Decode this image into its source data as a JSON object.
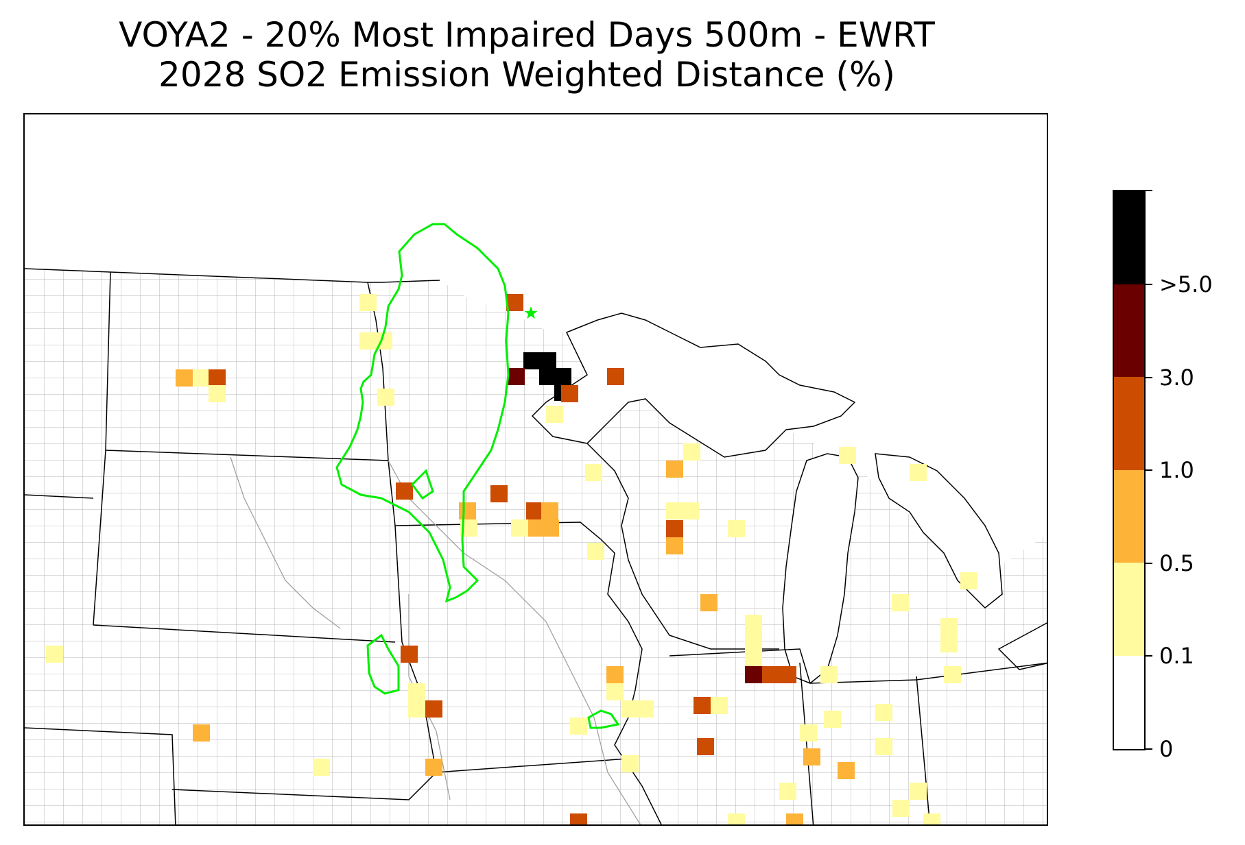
{
  "title": {
    "line1": "VOYA2 - 20% Most Impaired Days 500m - EWRT",
    "line2": "2028 SO2 Emission Weighted Distance (%)"
  },
  "legend": {
    "bins": [
      {
        "label": "0",
        "range": [
          0,
          0.1
        ],
        "color": "#ffffff"
      },
      {
        "label": "0.1",
        "range": [
          0.1,
          0.5
        ],
        "color": "#fffb9e"
      },
      {
        "label": "0.5",
        "range": [
          0.5,
          1.0
        ],
        "color": "#fdb338"
      },
      {
        "label": "1.0",
        "range": [
          1.0,
          3.0
        ],
        "color": "#cc4c02"
      },
      {
        "label": "3.0",
        "range": [
          3.0,
          5.0
        ],
        "color": "#6b0000"
      },
      {
        "label": ">5.0",
        "range": [
          5.0,
          null
        ],
        "color": "#000000"
      }
    ]
  },
  "map": {
    "region": "Upper Midwest United States",
    "state_border_color": "#000000",
    "county_border_color": "#a8a8a8",
    "contour_color": "#00ee00",
    "receptor_marker": {
      "name": "VOYA2",
      "symbol": "star",
      "color": "#00ee00"
    }
  }
}
